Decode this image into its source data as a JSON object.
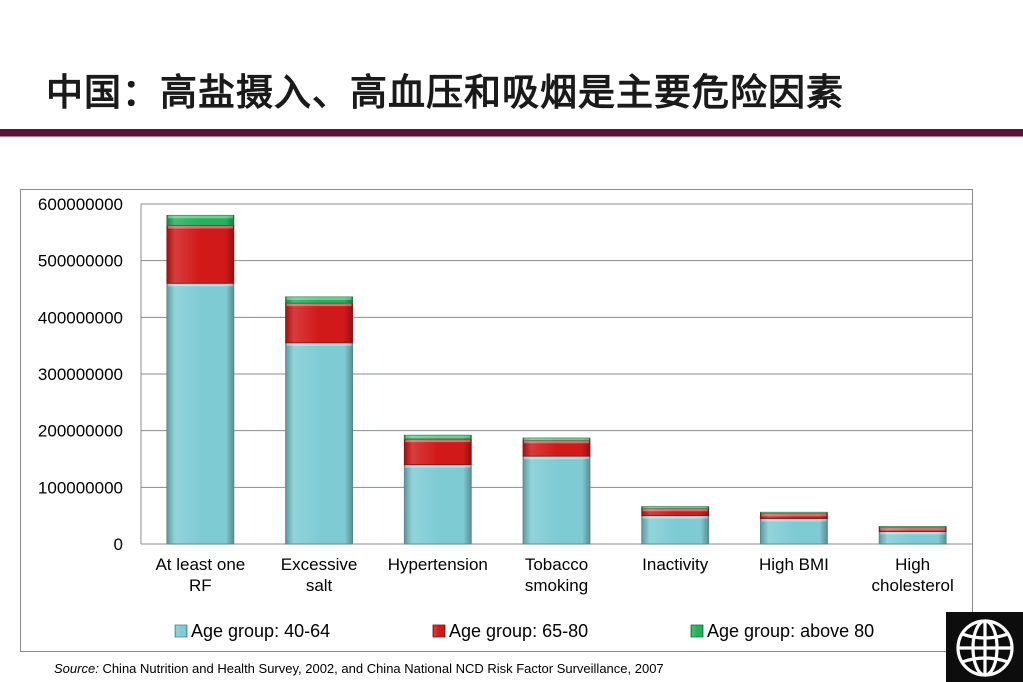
{
  "title": "中国：高盐摄入、高血压和吸烟是主要危险因素",
  "source": {
    "label": "Source:",
    "text": "China Nutrition and Health Survey, 2002, and China National NCD Risk Factor Surveillance, 2007"
  },
  "colors": {
    "title_rule": "#5a1238",
    "series": [
      "#7fcbd4",
      "#d11919",
      "#1fb45a"
    ],
    "gridline": "#8c8c8c",
    "logo_bg": "#0d0d0d"
  },
  "logo": {
    "icon": "globe-icon"
  },
  "chart_data": {
    "type": "bar",
    "stacked": true,
    "categories": [
      [
        "At least one",
        "RF"
      ],
      [
        "Excessive",
        "salt"
      ],
      [
        "Hypertension"
      ],
      [
        "Tobacco",
        "smoking"
      ],
      [
        "Inactivity"
      ],
      [
        "High BMI"
      ],
      [
        "High",
        "cholesterol"
      ]
    ],
    "series": [
      {
        "name": "Age group: 40-64",
        "values": [
          460000000,
          355000000,
          140000000,
          155000000,
          50000000,
          45000000,
          22000000
        ]
      },
      {
        "name": "Age group: 65-80",
        "values": [
          102000000,
          70000000,
          45000000,
          28000000,
          13000000,
          9000000,
          7000000
        ]
      },
      {
        "name": "Age group: above 80",
        "values": [
          18000000,
          11000000,
          7000000,
          4000000,
          3000000,
          2000000,
          2000000
        ]
      }
    ],
    "yticks": [
      "0",
      "100000000",
      "200000000",
      "300000000",
      "400000000",
      "500000000",
      "600000000"
    ],
    "ylim": [
      0,
      600000000
    ],
    "grid": true,
    "legend_position": "bottom",
    "xlabel": "",
    "ylabel": ""
  }
}
